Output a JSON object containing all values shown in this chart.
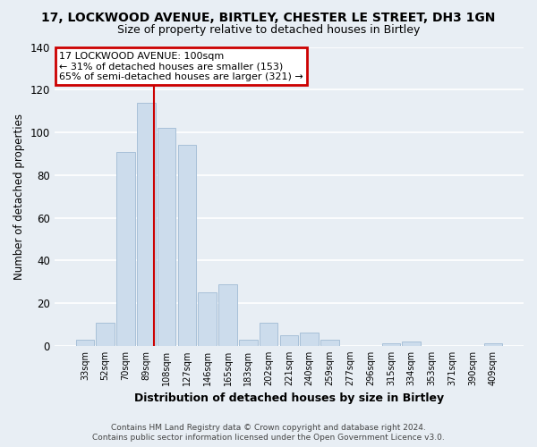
{
  "title_line1": "17, LOCKWOOD AVENUE, BIRTLEY, CHESTER LE STREET, DH3 1GN",
  "title_line2": "Size of property relative to detached houses in Birtley",
  "xlabel": "Distribution of detached houses by size in Birtley",
  "ylabel": "Number of detached properties",
  "categories": [
    "33sqm",
    "52sqm",
    "70sqm",
    "89sqm",
    "108sqm",
    "127sqm",
    "146sqm",
    "165sqm",
    "183sqm",
    "202sqm",
    "221sqm",
    "240sqm",
    "259sqm",
    "277sqm",
    "296sqm",
    "315sqm",
    "334sqm",
    "353sqm",
    "371sqm",
    "390sqm",
    "409sqm"
  ],
  "values": [
    3,
    11,
    91,
    114,
    102,
    94,
    25,
    29,
    3,
    11,
    5,
    6,
    3,
    0,
    0,
    1,
    2,
    0,
    0,
    0,
    1
  ],
  "bar_color": "#ccdcec",
  "bar_edge_color": "#a8c0d8",
  "ylim": [
    0,
    140
  ],
  "yticks": [
    0,
    20,
    40,
    60,
    80,
    100,
    120,
    140
  ],
  "annotation_title": "17 LOCKWOOD AVENUE: 100sqm",
  "annotation_line1": "← 31% of detached houses are smaller (153)",
  "annotation_line2": "65% of semi-detached houses are larger (321) →",
  "annotation_box_color": "#ffffff",
  "annotation_box_edge": "#cc0000",
  "marker_line_color": "#cc0000",
  "marker_bar_index": 3,
  "footer_line1": "Contains HM Land Registry data © Crown copyright and database right 2024.",
  "footer_line2": "Contains public sector information licensed under the Open Government Licence v3.0.",
  "bg_color": "#e8eef4",
  "plot_bg_color": "#e8eef4",
  "grid_color": "#ffffff",
  "title1_fontsize": 10,
  "title2_fontsize": 9
}
